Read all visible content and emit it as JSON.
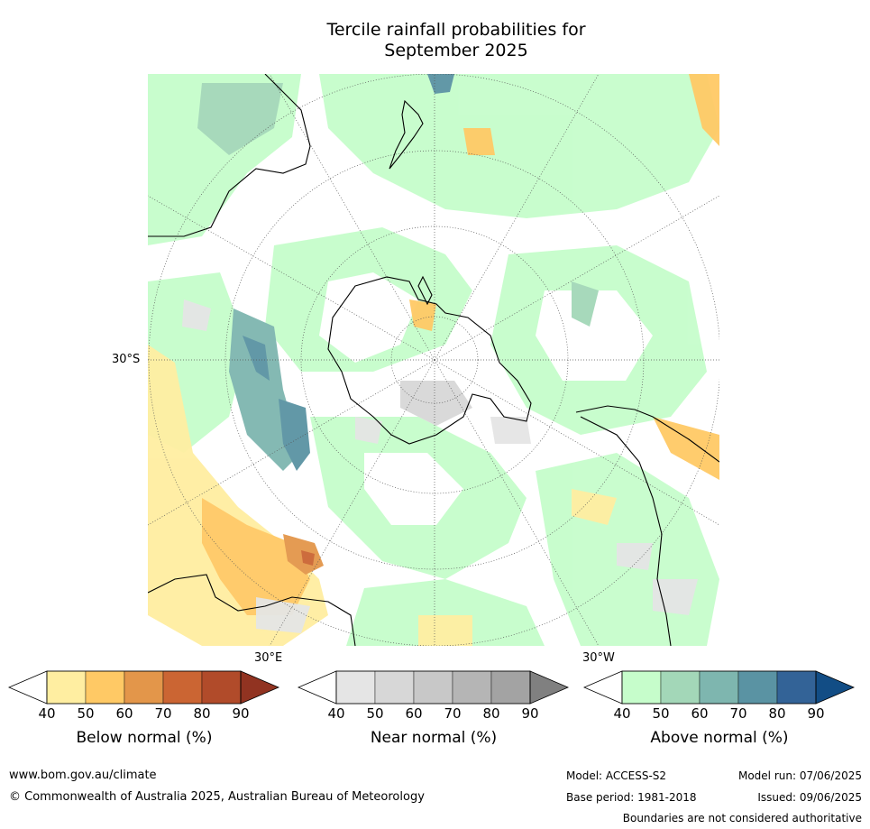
{
  "title": {
    "line1": "Tercile rainfall probabilities for",
    "line2": "September 2025"
  },
  "map": {
    "projection": "south-polar",
    "labels": {
      "lat_30s": "30°S",
      "lon_30e": "30°E",
      "lon_30w": "30°W"
    }
  },
  "colorbars": [
    {
      "name": "Below normal (%)",
      "ticks": [
        "40",
        "50",
        "60",
        "70",
        "80",
        "90"
      ],
      "colors": [
        "#ffffff",
        "#ffeea1",
        "#ffc965",
        "#e3964a",
        "#cb6533",
        "#b14b2a",
        "#913321"
      ]
    },
    {
      "name": "Near normal (%)",
      "ticks": [
        "40",
        "50",
        "60",
        "70",
        "80",
        "90"
      ],
      "colors": [
        "#ffffff",
        "#e5e5e5",
        "#d7d7d7",
        "#c8c8c8",
        "#b5b5b5",
        "#a3a3a3",
        "#808080"
      ]
    },
    {
      "name": "Above normal (%)",
      "ticks": [
        "40",
        "50",
        "60",
        "70",
        "80",
        "90"
      ],
      "colors": [
        "#ffffff",
        "#c6fdcb",
        "#a3d7b8",
        "#7eb6af",
        "#5a93a3",
        "#336397",
        "#124d85"
      ]
    }
  ],
  "footer": {
    "website": "www.bom.gov.au/climate",
    "copyright": "© Commonwealth of Australia 2025, Australian Bureau of Meteorology",
    "model": "Model: ACCESS-S2",
    "base_period": "Base period: 1981-2018",
    "model_run": "Model run: 07/06/2025",
    "issued": "Issued: 09/06/2025",
    "disclaimer": "Boundaries are not considered authoritative"
  }
}
